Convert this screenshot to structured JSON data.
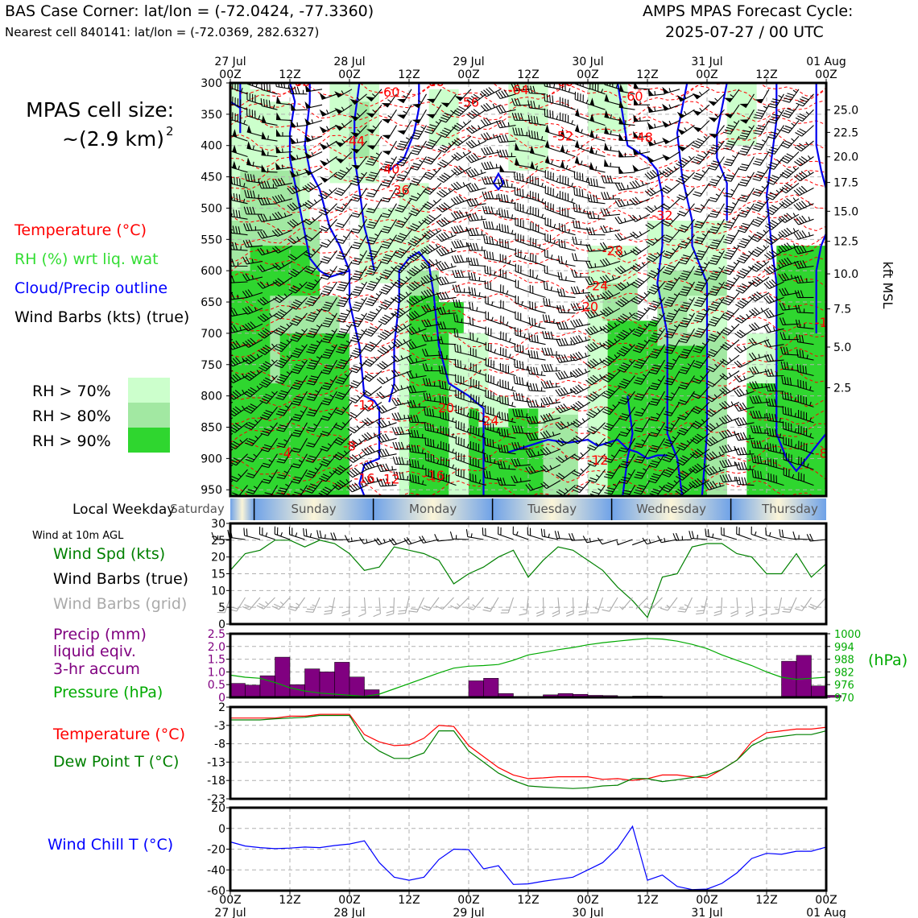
{
  "header": {
    "left_title": "BAS Case Corner: lat/lon = (-72.0424, -77.3360)",
    "left_sub": "Nearest cell 840141: lat/lon = (-72.0369, 282.6327)",
    "right_title": "AMPS MPAS Forecast Cycle:",
    "right_sub": "2025-07-27 / 00 UTC"
  },
  "time_axis": {
    "ticks_top": [
      [
        "27 Jul",
        "00Z"
      ],
      [
        "",
        "12Z"
      ],
      [
        "28 Jul",
        "00Z"
      ],
      [
        "",
        "12Z"
      ],
      [
        "29 Jul",
        "00Z"
      ],
      [
        "",
        "12Z"
      ],
      [
        "30 Jul",
        "00Z"
      ],
      [
        "",
        "12Z"
      ],
      [
        "31 Jul",
        "00Z"
      ],
      [
        "",
        "12Z"
      ],
      [
        "01 Aug",
        "00Z"
      ]
    ],
    "ticks_bottom": [
      [
        "00Z",
        "27 Jul"
      ],
      [
        "12Z",
        ""
      ],
      [
        "00Z",
        "28 Jul"
      ],
      [
        "12Z",
        ""
      ],
      [
        "00Z",
        "29 Jul"
      ],
      [
        "12Z",
        ""
      ],
      [
        "00Z",
        "30 Jul"
      ],
      [
        "12Z",
        ""
      ],
      [
        "00Z",
        "31 Jul"
      ],
      [
        "12Z",
        ""
      ],
      [
        "00Z",
        "01 Aug"
      ]
    ]
  },
  "cell_size": {
    "label": "MPAS cell size:",
    "value": "~(2.9 km)",
    "exp": "2"
  },
  "legend_main": [
    {
      "text": "Temperature (°C)",
      "color": "#ff0000"
    },
    {
      "text": "RH (%) wrt liq. wat",
      "color": "#33dd33"
    },
    {
      "text": "Cloud/Precip outline",
      "color": "#0000ff"
    },
    {
      "text": "Wind Barbs (kts) (true)",
      "color": "#000000"
    }
  ],
  "rh_legend": [
    {
      "text": "RH > 70%",
      "color": "#ccffcc"
    },
    {
      "text": "RH > 80%",
      "color": "#a2e8a2"
    },
    {
      "text": "RH > 90%",
      "color": "#2fd62f"
    }
  ],
  "weekday": {
    "label": "Local Weekday",
    "days": [
      "Saturday",
      "Sunday",
      "Monday",
      "Tuesday",
      "Wednesday",
      "Thursday"
    ]
  },
  "chart_data": [
    {
      "type": "heatmap",
      "panel": "time-height",
      "y_pressure_ticks": [
        300,
        350,
        400,
        450,
        500,
        550,
        600,
        650,
        700,
        750,
        800,
        850,
        900,
        950
      ],
      "ylim_hpa": [
        960,
        300
      ],
      "y_right_label": "kft MSL",
      "y_right_ticks": [
        {
          "label": "25.0",
          "hpa": 343
        },
        {
          "label": "22.5",
          "hpa": 379
        },
        {
          "label": "20.0",
          "hpa": 418
        },
        {
          "label": "17.5",
          "hpa": 459
        },
        {
          "label": "15.0",
          "hpa": 505
        },
        {
          "label": "12.5",
          "hpa": 553
        },
        {
          "label": "10.0",
          "hpa": 605
        },
        {
          "label": "7.5",
          "hpa": 661
        },
        {
          "label": "5.0",
          "hpa": 722
        },
        {
          "label": "2.5",
          "hpa": 787
        }
      ],
      "x_hours": [
        0,
        120
      ],
      "temperature_labels": [
        {
          "t": "-60",
          "h": 14,
          "p": 305
        },
        {
          "t": "-60",
          "h": 32,
          "p": 322
        },
        {
          "t": "-60",
          "h": 41,
          "p": 305
        },
        {
          "t": "-56",
          "h": 48,
          "p": 338
        },
        {
          "t": "-64",
          "h": 58,
          "p": 318
        },
        {
          "t": "-60",
          "h": 67,
          "p": 305
        },
        {
          "t": "-60",
          "h": 81,
          "p": 328
        },
        {
          "t": "-44",
          "h": 25,
          "p": 400
        },
        {
          "t": "-52",
          "h": 67,
          "p": 392
        },
        {
          "t": "-48",
          "h": 83,
          "p": 394
        },
        {
          "t": "-40",
          "h": 32,
          "p": 445
        },
        {
          "t": "-36",
          "h": 34,
          "p": 478
        },
        {
          "t": "-32",
          "h": 87,
          "p": 519
        },
        {
          "t": "-28",
          "h": 77,
          "p": 575
        },
        {
          "t": "-24",
          "h": 74,
          "p": 631
        },
        {
          "t": "-20",
          "h": 72,
          "p": 665
        },
        {
          "t": "-12",
          "h": 27,
          "p": 822
        },
        {
          "t": "-8",
          "h": 24,
          "p": 887
        },
        {
          "t": "-20",
          "h": 43,
          "p": 826
        },
        {
          "t": "-24",
          "h": 52,
          "p": 847
        },
        {
          "t": "-16",
          "h": 27,
          "p": 939
        },
        {
          "t": "-12",
          "h": 32,
          "p": 940
        },
        {
          "t": "-16",
          "h": 41,
          "p": 934
        },
        {
          "t": "-12",
          "h": 74,
          "p": 910
        },
        {
          "t": "-4",
          "h": 11,
          "p": 899
        },
        {
          "t": "-1",
          "h": 119,
          "p": 690
        },
        {
          "t": "-8",
          "h": 119,
          "p": 899
        }
      ]
    },
    {
      "type": "line",
      "panel": "wind-10m",
      "title": "Wind at 10m AGL",
      "labels": [
        {
          "text": "Wind Spd (kts)",
          "color": "#008000"
        },
        {
          "text": "Wind Barbs (true)",
          "color": "#000000"
        },
        {
          "text": "Wind Barbs (grid)",
          "color": "#aaaaaa"
        }
      ],
      "ylim": [
        0,
        30
      ],
      "yticks": [
        0,
        5,
        10,
        15,
        20,
        25,
        30
      ],
      "x": [
        0,
        3,
        6,
        9,
        12,
        15,
        18,
        21,
        24,
        27,
        30,
        33,
        36,
        39,
        42,
        45,
        48,
        51,
        54,
        57,
        60,
        63,
        66,
        69,
        72,
        75,
        78,
        81,
        84,
        87,
        90,
        93,
        96,
        99,
        102,
        105,
        108,
        111,
        114,
        117,
        120
      ],
      "series": [
        {
          "name": "Wind Spd (kts)",
          "color": "#008000",
          "values": [
            16,
            21,
            22,
            25,
            25,
            23,
            25,
            24,
            21,
            16,
            17,
            23,
            22,
            21,
            19,
            12,
            15,
            17,
            20,
            22,
            14,
            19,
            23,
            22,
            19,
            16,
            11,
            7,
            2,
            14,
            15,
            23,
            24,
            24,
            21,
            20,
            15,
            15,
            21,
            14,
            18
          ]
        }
      ]
    },
    {
      "type": "bar",
      "panel": "precip-pressure",
      "labels": [
        {
          "text": "Precip (mm)",
          "color": "#800080"
        },
        {
          "text": "liquid eqiv.",
          "color": "#800080"
        },
        {
          "text": "3-hr accum",
          "color": "#800080"
        },
        {
          "text": "Pressure (hPa)",
          "color": "#00aa00"
        }
      ],
      "ylim_precip": [
        0,
        2.5
      ],
      "yticks_precip": [
        "0",
        "0.5",
        "1.0",
        "1.5",
        "2.0",
        "2.5"
      ],
      "ylim_pressure": [
        970,
        1000
      ],
      "yticks_pressure": [
        "970",
        "976",
        "982",
        "988",
        "994",
        "1000"
      ],
      "x": [
        0,
        3,
        6,
        9,
        12,
        15,
        18,
        21,
        24,
        27,
        30,
        33,
        36,
        39,
        42,
        45,
        48,
        51,
        54,
        57,
        60,
        63,
        66,
        69,
        72,
        75,
        78,
        81,
        84,
        87,
        90,
        93,
        96,
        99,
        102,
        105,
        108,
        111,
        114,
        117,
        120
      ],
      "precip": [
        0.55,
        0.48,
        0.85,
        1.58,
        0.5,
        1.12,
        1.0,
        1.38,
        0.8,
        0.3,
        0,
        0,
        0,
        0,
        0,
        0,
        0.65,
        0.75,
        0.15,
        0,
        0,
        0.1,
        0.15,
        0.12,
        0.08,
        0.07,
        0.02,
        0.05,
        0.05,
        0,
        0,
        0,
        0,
        0,
        0,
        0,
        0,
        1.42,
        1.65,
        0.45,
        0.08
      ],
      "series": [
        {
          "name": "Pressure (hPa)",
          "color": "#00aa00",
          "values": [
            980.5,
            979.5,
            979,
            977,
            974.5,
            973,
            972,
            971.5,
            971,
            970.5,
            971.5,
            974,
            976.5,
            979,
            981.5,
            983.8,
            984.7,
            985,
            985.5,
            987.5,
            990,
            991.2,
            992.5,
            993.5,
            994.8,
            995.8,
            996.5,
            997.2,
            997.8,
            997.5,
            996.5,
            995,
            993,
            990,
            987.5,
            985,
            982,
            979.5,
            978.5,
            979,
            979.5
          ]
        }
      ]
    },
    {
      "type": "line",
      "panel": "temperature",
      "labels": [
        {
          "text": "Temperature (°C)",
          "color": "#ff0000"
        },
        {
          "text": "Dew Point T (°C)",
          "color": "#008000"
        }
      ],
      "ylim": [
        -23,
        2
      ],
      "yticks": [
        2,
        -3,
        -8,
        -13,
        -18,
        -23
      ],
      "x": [
        0,
        3,
        6,
        9,
        12,
        15,
        18,
        21,
        24,
        27,
        30,
        33,
        36,
        39,
        42,
        45,
        48,
        51,
        54,
        57,
        60,
        63,
        66,
        69,
        72,
        75,
        78,
        81,
        84,
        87,
        90,
        93,
        96,
        99,
        102,
        105,
        108,
        111,
        114,
        117,
        120
      ],
      "series": [
        {
          "name": "Temperature (°C)",
          "color": "#ff0000",
          "values": [
            -1,
            -1,
            -1,
            -1,
            -0.5,
            -0.5,
            0,
            0,
            0,
            -5.5,
            -7.5,
            -8.5,
            -8.3,
            -6.5,
            -3,
            -3.3,
            -8.5,
            -11.5,
            -14.5,
            -16.5,
            -17.5,
            -17.3,
            -17,
            -17,
            -17,
            -17.7,
            -17.5,
            -18,
            -17.5,
            -16.5,
            -16.5,
            -17,
            -17.3,
            -15,
            -12.5,
            -7.5,
            -5,
            -4.5,
            -4,
            -4,
            -3.5
          ]
        },
        {
          "name": "Dew Point T (°C)",
          "color": "#008000",
          "values": [
            -1.5,
            -1.5,
            -1.5,
            -1.2,
            -1,
            -0.8,
            -0.3,
            -0.3,
            -0.3,
            -7,
            -10,
            -12,
            -12,
            -10.5,
            -4.5,
            -4.5,
            -10,
            -13,
            -16,
            -18,
            -19.5,
            -19.8,
            -20,
            -20.2,
            -20,
            -19.5,
            -19.3,
            -17.5,
            -17.5,
            -18.3,
            -17.8,
            -17.2,
            -16.5,
            -15,
            -12.5,
            -8.5,
            -6.5,
            -6,
            -5.5,
            -5.5,
            -4.5
          ]
        }
      ]
    },
    {
      "type": "line",
      "panel": "wind-chill",
      "labels": [
        {
          "text": "Wind Chill T (°C)",
          "color": "#0000ff"
        }
      ],
      "ylim": [
        -60,
        20
      ],
      "yticks": [
        20,
        0,
        -20,
        -40,
        -60
      ],
      "x": [
        0,
        3,
        6,
        9,
        12,
        15,
        18,
        21,
        24,
        27,
        30,
        33,
        36,
        39,
        42,
        45,
        48,
        51,
        54,
        57,
        60,
        63,
        66,
        69,
        72,
        75,
        78,
        81,
        84,
        87,
        90,
        93,
        96,
        99,
        102,
        105,
        108,
        111,
        114,
        117,
        120
      ],
      "series": [
        {
          "name": "Wind Chill T (°C)",
          "color": "#0000ff",
          "values": [
            -13,
            -17,
            -18.5,
            -19.5,
            -19,
            -18,
            -18.5,
            -16.5,
            -15,
            -12,
            -33,
            -47,
            -50,
            -47,
            -30,
            -20,
            -20.5,
            -39,
            -36,
            -54,
            -53.5,
            -51,
            -49,
            -47,
            -40,
            -33,
            -19,
            2,
            -50,
            -45,
            -56,
            -59,
            -58.5,
            -53,
            -43,
            -29,
            -24,
            -25,
            -22,
            -22,
            -18
          ]
        }
      ]
    }
  ]
}
